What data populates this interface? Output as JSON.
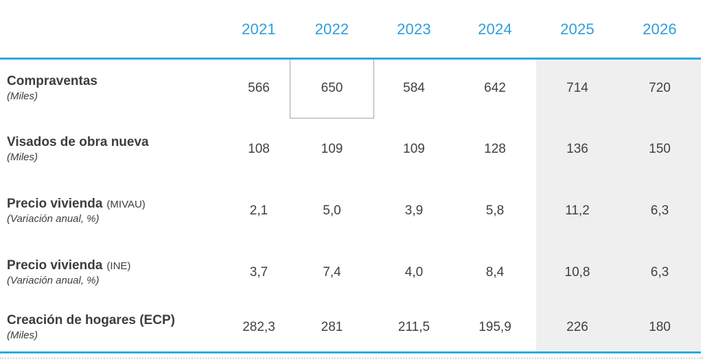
{
  "table": {
    "years": [
      "2021",
      "2022",
      "2023",
      "2024",
      "2025",
      "2026"
    ],
    "rows": [
      {
        "title": "Compraventas",
        "subtitle": "(Miles)",
        "values": [
          "566",
          "650",
          "584",
          "642",
          "714",
          "720"
        ]
      },
      {
        "title": "Visados de obra nueva",
        "subtitle": "(Miles)",
        "values": [
          "108",
          "109",
          "109",
          "128",
          "136",
          "150"
        ]
      },
      {
        "title": "Precio vivienda",
        "suffix": "(MIVAU)",
        "subtitle": "(Variación anual, %)",
        "values": [
          "2,1",
          "5,0",
          "3,9",
          "5,8",
          "11,2",
          "6,3"
        ]
      },
      {
        "title": "Precio vivienda",
        "suffix": "(INE)",
        "subtitle": "(Variación anual, %)",
        "values": [
          "3,7",
          "7,4",
          "4,0",
          "8,4",
          "10,8",
          "6,3"
        ]
      },
      {
        "title": "Creación de hogares (ECP)",
        "subtitle": "(Miles)",
        "values": [
          "282,3",
          "281",
          "211,5",
          "195,9",
          "226",
          "180"
        ]
      }
    ]
  },
  "chart_data": {
    "type": "table",
    "categories": [
      "2021",
      "2022",
      "2023",
      "2024",
      "2025",
      "2026"
    ],
    "series": [
      {
        "name": "Compraventas (Miles)",
        "values": [
          566,
          650,
          584,
          642,
          714,
          720
        ]
      },
      {
        "name": "Visados de obra nueva (Miles)",
        "values": [
          108,
          109,
          109,
          128,
          136,
          150
        ]
      },
      {
        "name": "Precio vivienda (MIVAU) (Variación anual, %)",
        "values": [
          2.1,
          5.0,
          3.9,
          5.8,
          11.2,
          6.3
        ]
      },
      {
        "name": "Precio vivienda (INE) (Variación anual, %)",
        "values": [
          3.7,
          7.4,
          4.0,
          8.4,
          10.8,
          6.3
        ]
      },
      {
        "name": "Creación de hogares (ECP) (Miles)",
        "values": [
          282.3,
          281,
          211.5,
          195.9,
          226,
          180
        ]
      }
    ],
    "layout_hints": {
      "shaded_forecast_years": [
        "2025",
        "2026"
      ],
      "boxed_cell": {
        "row": "Compraventas",
        "year": "2022",
        "value": 650
      },
      "grid": "off",
      "header_text_color": "#2E9FD8"
    }
  },
  "colors": {
    "accent_line": "#29A9E1",
    "year_text": "#2E9FD8",
    "forecast_background": "#EFEFEF",
    "highlight_box_border": "#A6A6A6",
    "label_text": "#3D3D3D",
    "value_text": "#404040"
  }
}
